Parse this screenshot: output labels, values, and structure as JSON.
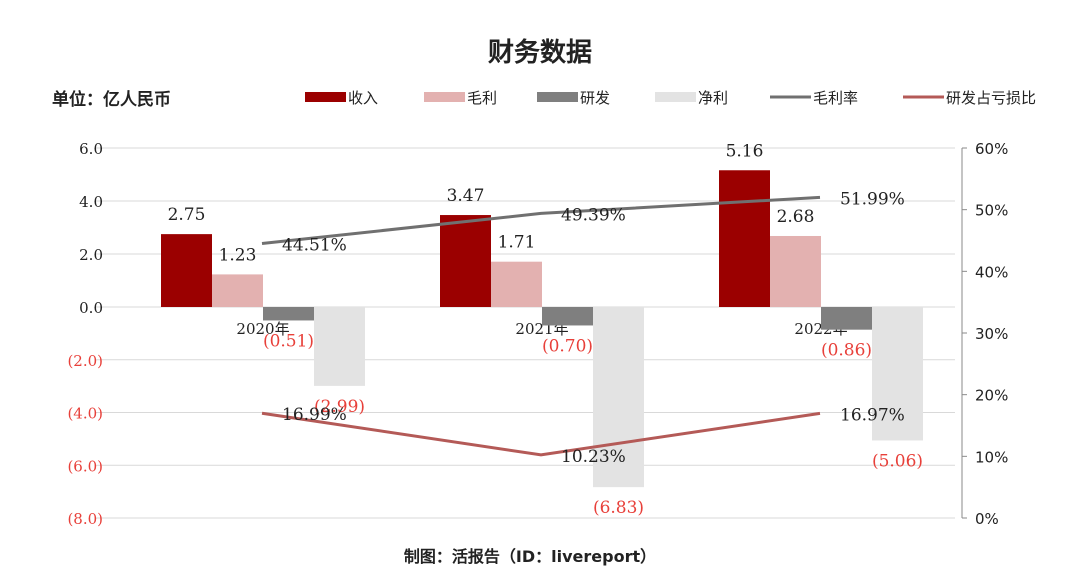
{
  "chart_data": {
    "type": "bar",
    "title": "财务数据",
    "unit_label": "单位：亿人民币",
    "footer": "制图：活报告（ID：livereport）",
    "categories": [
      "2020年",
      "2021年",
      "2022年"
    ],
    "series": [
      {
        "name": "收入",
        "kind": "bar",
        "color": "#9B0000",
        "values": [
          2.75,
          3.47,
          5.16
        ],
        "labels": [
          "2.75",
          "3.47",
          "5.16"
        ]
      },
      {
        "name": "毛利",
        "kind": "bar",
        "color": "#E3B1B0",
        "values": [
          1.23,
          1.71,
          2.68
        ],
        "labels": [
          "1.23",
          "1.71",
          "2.68"
        ]
      },
      {
        "name": "研发",
        "kind": "bar",
        "color": "#7F7F7F",
        "values": [
          -0.51,
          -0.7,
          -0.86
        ],
        "labels": [
          "(0.51)",
          "(0.70)",
          "(0.86)"
        ]
      },
      {
        "name": "净利",
        "kind": "bar",
        "color": "#E3E3E3",
        "values": [
          -2.99,
          -6.83,
          -5.06
        ],
        "labels": [
          "(2.99)",
          "(6.83)",
          "(5.06)"
        ]
      },
      {
        "name": "毛利率",
        "kind": "line",
        "axis": "right",
        "color": "#707070",
        "values": [
          44.51,
          49.39,
          51.99
        ],
        "labels": [
          "44.51%",
          "49.39%",
          "51.99%"
        ]
      },
      {
        "name": "研发占亏损比",
        "kind": "line",
        "axis": "right",
        "color": "#B45A57",
        "values": [
          16.99,
          10.23,
          16.97
        ],
        "labels": [
          "16.99%",
          "10.23%",
          "16.97%"
        ]
      }
    ],
    "left_axis": {
      "ylim": [
        -8,
        6
      ],
      "ticks": [
        6,
        4,
        2,
        0,
        -2,
        -4,
        -6,
        -8
      ],
      "tick_labels": [
        "6.0",
        "4.0",
        "2.0",
        "0.0",
        "(2.0)",
        "(4.0)",
        "(6.0)",
        "(8.0)"
      ]
    },
    "right_axis": {
      "ylim": [
        0,
        60
      ],
      "ticks": [
        60,
        50,
        40,
        30,
        20,
        10,
        0
      ],
      "tick_labels": [
        "60%",
        "50%",
        "40%",
        "30%",
        "20%",
        "10%",
        "0%"
      ]
    },
    "grid": true,
    "legend_position": "top",
    "colors": {
      "negative_text": "#E8403A",
      "text": "#222222",
      "grid": "#D9D9D9"
    }
  }
}
